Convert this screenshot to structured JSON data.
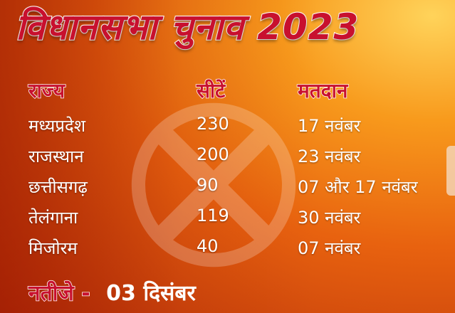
{
  "title": "विधानसभा चुनाव 2023",
  "headers": {
    "state": "राज्य",
    "seats": "सीटें",
    "polling": "मतदान"
  },
  "rows": [
    {
      "state": "मध्यप्रदेश",
      "seats": "230",
      "polling": "17 नवंबर"
    },
    {
      "state": "राजस्थान",
      "seats": "200",
      "polling": "23 नवंबर"
    },
    {
      "state": "छत्तीसगढ़",
      "seats": "90",
      "polling": "07 और 17 नवंबर"
    },
    {
      "state": "तेलंगाना",
      "seats": "119",
      "polling": "30 नवंबर"
    },
    {
      "state": "मिजोरम",
      "seats": "40",
      "polling": "07 नवंबर"
    }
  ],
  "footer": {
    "label": "नतीजे -",
    "value": "03 दिसंबर"
  },
  "colors": {
    "accent": "#c8102e",
    "background": "#e8620f",
    "text": "#ffffff"
  },
  "icons": {
    "watermark": "election-ballot-mark-icon"
  }
}
